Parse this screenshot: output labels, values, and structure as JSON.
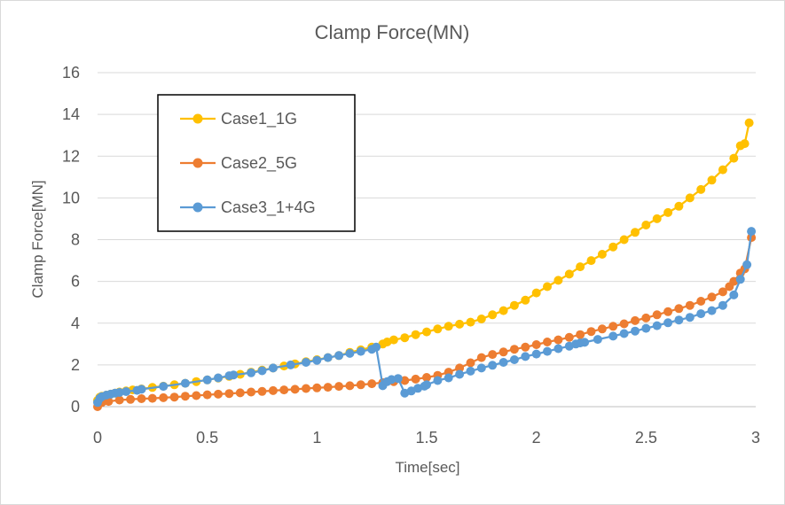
{
  "chart_data": {
    "type": "line",
    "title": "Clamp Force(MN)",
    "xlabel": "Time[sec]",
    "ylabel": "Clamp Force[MN]",
    "xlim": [
      0,
      3
    ],
    "ylim": [
      0,
      16
    ],
    "x_ticks": [
      0,
      0.5,
      1,
      1.5,
      2,
      2.5,
      3
    ],
    "y_ticks": [
      0,
      2,
      4,
      6,
      8,
      10,
      12,
      14,
      16
    ],
    "x_tick_labels": [
      "0",
      "0.5",
      "1",
      "1.5",
      "2",
      "2.5",
      "3"
    ],
    "y_tick_labels": [
      "0",
      "2",
      "4",
      "6",
      "8",
      "10",
      "12",
      "14",
      "16"
    ],
    "grid": true,
    "legend_position": "top-left",
    "series": [
      {
        "name": "Case1_1G",
        "color": "#FFC000",
        "points": [
          [
            0,
            0.3
          ],
          [
            0.01,
            0.45
          ],
          [
            0.02,
            0.5
          ],
          [
            0.04,
            0.55
          ],
          [
            0.06,
            0.6
          ],
          [
            0.08,
            0.65
          ],
          [
            0.1,
            0.7
          ],
          [
            0.13,
            0.75
          ],
          [
            0.16,
            0.8
          ],
          [
            0.2,
            0.85
          ],
          [
            0.25,
            0.92
          ],
          [
            0.3,
            0.98
          ],
          [
            0.35,
            1.05
          ],
          [
            0.4,
            1.12
          ],
          [
            0.45,
            1.2
          ],
          [
            0.5,
            1.28
          ],
          [
            0.55,
            1.37
          ],
          [
            0.6,
            1.45
          ],
          [
            0.65,
            1.55
          ],
          [
            0.7,
            1.65
          ],
          [
            0.75,
            1.75
          ],
          [
            0.8,
            1.85
          ],
          [
            0.85,
            1.95
          ],
          [
            0.9,
            2.05
          ],
          [
            0.95,
            2.15
          ],
          [
            1.0,
            2.25
          ],
          [
            1.05,
            2.35
          ],
          [
            1.1,
            2.45
          ],
          [
            1.15,
            2.6
          ],
          [
            1.2,
            2.72
          ],
          [
            1.25,
            2.85
          ],
          [
            1.3,
            3.0
          ],
          [
            1.32,
            3.1
          ],
          [
            1.35,
            3.2
          ],
          [
            1.4,
            3.3
          ],
          [
            1.45,
            3.45
          ],
          [
            1.5,
            3.58
          ],
          [
            1.55,
            3.72
          ],
          [
            1.6,
            3.85
          ],
          [
            1.65,
            3.95
          ],
          [
            1.7,
            4.05
          ],
          [
            1.75,
            4.2
          ],
          [
            1.8,
            4.4
          ],
          [
            1.85,
            4.6
          ],
          [
            1.9,
            4.85
          ],
          [
            1.95,
            5.1
          ],
          [
            2.0,
            5.45
          ],
          [
            2.05,
            5.75
          ],
          [
            2.1,
            6.05
          ],
          [
            2.15,
            6.35
          ],
          [
            2.2,
            6.7
          ],
          [
            2.25,
            7.0
          ],
          [
            2.3,
            7.3
          ],
          [
            2.35,
            7.65
          ],
          [
            2.4,
            8.0
          ],
          [
            2.45,
            8.35
          ],
          [
            2.5,
            8.7
          ],
          [
            2.55,
            9.0
          ],
          [
            2.6,
            9.3
          ],
          [
            2.65,
            9.6
          ],
          [
            2.7,
            10.0
          ],
          [
            2.75,
            10.4
          ],
          [
            2.8,
            10.85
          ],
          [
            2.85,
            11.35
          ],
          [
            2.9,
            11.9
          ],
          [
            2.93,
            12.5
          ],
          [
            2.95,
            12.6
          ],
          [
            2.97,
            13.6
          ]
        ]
      },
      {
        "name": "Case2_5G",
        "color": "#ED7D31",
        "points": [
          [
            0,
            0.0
          ],
          [
            0.02,
            0.2
          ],
          [
            0.05,
            0.25
          ],
          [
            0.1,
            0.32
          ],
          [
            0.15,
            0.35
          ],
          [
            0.2,
            0.38
          ],
          [
            0.25,
            0.4
          ],
          [
            0.3,
            0.43
          ],
          [
            0.35,
            0.46
          ],
          [
            0.4,
            0.5
          ],
          [
            0.45,
            0.53
          ],
          [
            0.5,
            0.57
          ],
          [
            0.55,
            0.6
          ],
          [
            0.6,
            0.63
          ],
          [
            0.65,
            0.66
          ],
          [
            0.7,
            0.7
          ],
          [
            0.75,
            0.73
          ],
          [
            0.8,
            0.77
          ],
          [
            0.85,
            0.8
          ],
          [
            0.9,
            0.83
          ],
          [
            0.95,
            0.87
          ],
          [
            1.0,
            0.9
          ],
          [
            1.05,
            0.93
          ],
          [
            1.1,
            0.97
          ],
          [
            1.15,
            1.0
          ],
          [
            1.2,
            1.05
          ],
          [
            1.25,
            1.1
          ],
          [
            1.3,
            1.15
          ],
          [
            1.35,
            1.2
          ],
          [
            1.4,
            1.25
          ],
          [
            1.45,
            1.32
          ],
          [
            1.5,
            1.4
          ],
          [
            1.55,
            1.5
          ],
          [
            1.6,
            1.65
          ],
          [
            1.65,
            1.85
          ],
          [
            1.7,
            2.1
          ],
          [
            1.75,
            2.35
          ],
          [
            1.8,
            2.5
          ],
          [
            1.85,
            2.62
          ],
          [
            1.9,
            2.75
          ],
          [
            1.95,
            2.85
          ],
          [
            2.0,
            2.97
          ],
          [
            2.05,
            3.1
          ],
          [
            2.1,
            3.2
          ],
          [
            2.15,
            3.32
          ],
          [
            2.2,
            3.45
          ],
          [
            2.25,
            3.6
          ],
          [
            2.3,
            3.72
          ],
          [
            2.35,
            3.85
          ],
          [
            2.4,
            3.97
          ],
          [
            2.45,
            4.12
          ],
          [
            2.5,
            4.25
          ],
          [
            2.55,
            4.4
          ],
          [
            2.6,
            4.55
          ],
          [
            2.65,
            4.7
          ],
          [
            2.7,
            4.85
          ],
          [
            2.75,
            5.05
          ],
          [
            2.8,
            5.25
          ],
          [
            2.85,
            5.5
          ],
          [
            2.88,
            5.75
          ],
          [
            2.9,
            6.0
          ],
          [
            2.93,
            6.4
          ],
          [
            2.95,
            6.6
          ],
          [
            2.98,
            8.1
          ]
        ]
      },
      {
        "name": "Case3_1+4G",
        "color": "#5B9BD5",
        "points": [
          [
            0,
            0.2
          ],
          [
            0.01,
            0.4
          ],
          [
            0.02,
            0.48
          ],
          [
            0.04,
            0.55
          ],
          [
            0.06,
            0.6
          ],
          [
            0.08,
            0.65
          ],
          [
            0.1,
            0.68
          ],
          [
            0.13,
            0.72
          ],
          [
            0.18,
            0.78
          ],
          [
            0.2,
            0.83
          ],
          [
            0.3,
            0.97
          ],
          [
            0.4,
            1.12
          ],
          [
            0.5,
            1.28
          ],
          [
            0.55,
            1.38
          ],
          [
            0.6,
            1.48
          ],
          [
            0.62,
            1.52
          ],
          [
            0.7,
            1.62
          ],
          [
            0.75,
            1.72
          ],
          [
            0.8,
            1.85
          ],
          [
            0.88,
            2.0
          ],
          [
            0.95,
            2.12
          ],
          [
            1.0,
            2.22
          ],
          [
            1.05,
            2.35
          ],
          [
            1.1,
            2.45
          ],
          [
            1.15,
            2.55
          ],
          [
            1.2,
            2.65
          ],
          [
            1.25,
            2.75
          ],
          [
            1.27,
            2.85
          ],
          [
            1.3,
            1.0
          ],
          [
            1.32,
            1.2
          ],
          [
            1.34,
            1.3
          ],
          [
            1.37,
            1.35
          ],
          [
            1.4,
            0.65
          ],
          [
            1.43,
            0.75
          ],
          [
            1.46,
            0.88
          ],
          [
            1.49,
            0.98
          ],
          [
            1.5,
            1.05
          ],
          [
            1.55,
            1.25
          ],
          [
            1.6,
            1.38
          ],
          [
            1.65,
            1.55
          ],
          [
            1.7,
            1.7
          ],
          [
            1.75,
            1.85
          ],
          [
            1.8,
            1.98
          ],
          [
            1.85,
            2.12
          ],
          [
            1.9,
            2.25
          ],
          [
            1.95,
            2.4
          ],
          [
            2.0,
            2.52
          ],
          [
            2.05,
            2.65
          ],
          [
            2.1,
            2.78
          ],
          [
            2.15,
            2.9
          ],
          [
            2.18,
            3.0
          ],
          [
            2.2,
            3.05
          ],
          [
            2.22,
            3.08
          ],
          [
            2.28,
            3.22
          ],
          [
            2.35,
            3.38
          ],
          [
            2.4,
            3.5
          ],
          [
            2.45,
            3.62
          ],
          [
            2.5,
            3.75
          ],
          [
            2.55,
            3.88
          ],
          [
            2.6,
            4.02
          ],
          [
            2.65,
            4.15
          ],
          [
            2.7,
            4.28
          ],
          [
            2.75,
            4.45
          ],
          [
            2.8,
            4.6
          ],
          [
            2.85,
            4.85
          ],
          [
            2.9,
            5.35
          ],
          [
            2.93,
            6.1
          ],
          [
            2.96,
            6.8
          ],
          [
            2.98,
            8.4
          ]
        ]
      }
    ]
  }
}
